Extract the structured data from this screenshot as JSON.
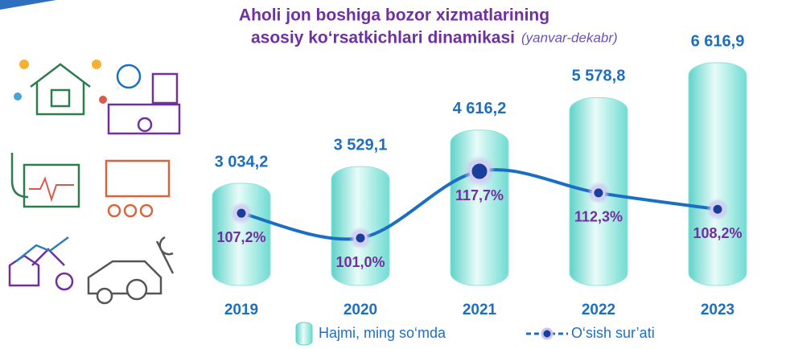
{
  "chart_data": {
    "type": "bar-line",
    "title": [
      "Aholi jon boshiga bozor xizmatlarining",
      "asosiy ko‘rsatkichlari dinamikasi"
    ],
    "subtitle": "(yanvar-dekabr)",
    "categories": [
      "2019",
      "2020",
      "2021",
      "2022",
      "2023"
    ],
    "series": [
      {
        "name": "Hajmi, ming so‘mda",
        "type": "bar",
        "color": "#6fdcd2",
        "values": [
          3034.2,
          3529.1,
          4616.2,
          5578.8,
          6616.9
        ],
        "value_labels": [
          "3 034,2",
          "3 529,1",
          "4 616,2",
          "5 578,8",
          "6 616,9"
        ]
      },
      {
        "name": "O‘sish sur’ati",
        "type": "line",
        "axis": "y2",
        "color": "#1a6fc4",
        "values": [
          107.2,
          101.0,
          117.7,
          112.3,
          108.2
        ],
        "value_labels": [
          "107,2%",
          "101,0%",
          "117,7%",
          "112,3%",
          "108,2%"
        ]
      }
    ]
  }
}
